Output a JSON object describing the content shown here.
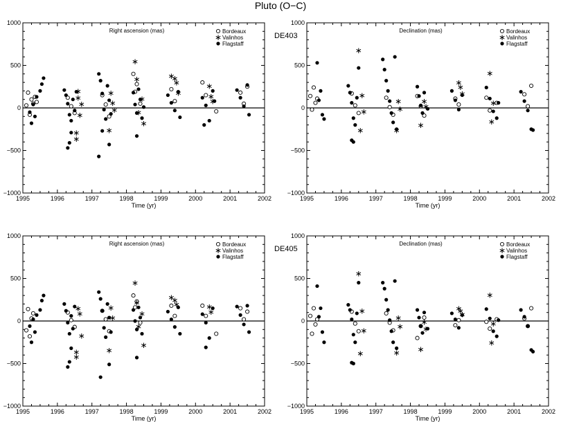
{
  "figure": {
    "title": "Pluto (O−C)"
  },
  "legend": [
    "Bordeaux",
    "Valinhos",
    "Flagstaff"
  ],
  "chart_data": [
    {
      "type": "scatter",
      "title": "Right ascension (mas)",
      "ephemeris": "",
      "xlabel": "Time (yr)",
      "ylabel": "",
      "xlim": [
        1995,
        2002
      ],
      "ylim": [
        -1000,
        1000
      ],
      "xticks": [
        "1995",
        "1996",
        "1997",
        "1998",
        "1999",
        "2000",
        "2001",
        "2002"
      ],
      "yticks": [
        "1000",
        "500",
        "0",
        "−500",
        "−1000"
      ],
      "series": [
        {
          "name": "Bordeaux",
          "marker": "open-circle",
          "x": [
            1995.1,
            1995.15,
            1995.2,
            1995.25,
            1995.3,
            1995.35,
            1995.4,
            1996.3,
            1996.4,
            1996.5,
            1997.3,
            1997.4,
            1997.5,
            1998.2,
            1998.25,
            1998.3,
            1998.4,
            1999.3,
            1999.4,
            2000.2,
            2000.3,
            2000.6,
            2001.3,
            2001.4,
            2001.5
          ],
          "y": [
            30,
            180,
            -80,
            100,
            50,
            130,
            70,
            120,
            20,
            -60,
            150,
            40,
            -100,
            400,
            190,
            280,
            50,
            220,
            80,
            300,
            150,
            -40,
            180,
            50,
            250
          ]
        },
        {
          "name": "Valinhos",
          "marker": "asterisk",
          "x": [
            1996.55,
            1996.55,
            1996.6,
            1996.6,
            1996.65,
            1996.7,
            1997.5,
            1997.55,
            1997.6,
            1997.65,
            1998.25,
            1998.3,
            1998.35,
            1998.45,
            1998.5,
            1999.3,
            1999.4,
            1999.45,
            1999.5,
            2000.4,
            2000.45,
            2000.5
          ],
          "y": [
            -290,
            -360,
            200,
            120,
            -80,
            50,
            -260,
            180,
            60,
            -20,
            550,
            340,
            -50,
            110,
            -180,
            380,
            350,
            300,
            180,
            260,
            140,
            80
          ]
        },
        {
          "name": "Flagstaff",
          "marker": "filled-circle",
          "x": [
            1995.2,
            1995.25,
            1995.3,
            1995.35,
            1995.4,
            1995.5,
            1995.55,
            1995.6,
            1996.2,
            1996.25,
            1996.3,
            1996.35,
            1996.4,
            1996.45,
            1996.5,
            1996.55,
            1996.3,
            1996.35,
            1996.4,
            1997.2,
            1997.25,
            1997.3,
            1997.35,
            1997.4,
            1997.45,
            1997.5,
            1997.55,
            1997.2,
            1997.3,
            1997.5,
            1998.2,
            1998.25,
            1998.3,
            1998.35,
            1998.4,
            1998.45,
            1998.5,
            1998.3,
            1999.2,
            1999.3,
            1999.4,
            1999.5,
            1999.55,
            2000.2,
            2000.3,
            2000.4,
            2000.5,
            2000.55,
            2000.25,
            2001.2,
            2001.3,
            2001.4,
            2001.5,
            2001.55
          ],
          "y": [
            -50,
            -180,
            40,
            -100,
            130,
            200,
            280,
            350,
            210,
            150,
            50,
            -80,
            -150,
            100,
            -30,
            190,
            -470,
            -410,
            -290,
            400,
            320,
            170,
            -20,
            -130,
            260,
            90,
            -70,
            -570,
            -270,
            -430,
            180,
            40,
            -60,
            220,
            100,
            -120,
            10,
            -330,
            150,
            60,
            -30,
            190,
            -110,
            120,
            30,
            -150,
            200,
            80,
            -200,
            210,
            120,
            20,
            270,
            -80
          ]
        }
      ]
    },
    {
      "type": "scatter",
      "title": "Declination (mas)",
      "ephemeris": "DE403",
      "xlabel": "Time (yr)",
      "ylabel": "",
      "xlim": [
        1995,
        2002
      ],
      "ylim": [
        -1000,
        1000
      ],
      "xticks": [
        "1995",
        "1996",
        "1997",
        "1998",
        "1999",
        "2000",
        "2001",
        "2002"
      ],
      "yticks": [
        "1000",
        "500",
        "0",
        "−500",
        "−1000"
      ],
      "series": [
        {
          "name": "Bordeaux",
          "marker": "open-circle",
          "x": [
            1995.1,
            1995.15,
            1995.2,
            1995.25,
            1995.3,
            1996.3,
            1996.4,
            1996.5,
            1997.3,
            1997.4,
            1997.5,
            1998.2,
            1998.3,
            1998.4,
            1999.3,
            1999.4,
            2000.2,
            2000.3,
            2000.5,
            2001.3,
            2001.4,
            2001.5
          ],
          "y": [
            140,
            -20,
            240,
            60,
            110,
            170,
            30,
            -60,
            120,
            10,
            -80,
            140,
            20,
            -90,
            110,
            40,
            120,
            -30,
            60,
            160,
            20,
            260
          ]
        },
        {
          "name": "Valinhos",
          "marker": "asterisk",
          "x": [
            1996.5,
            1996.55,
            1996.6,
            1996.65,
            1997.6,
            1997.65,
            1997.7,
            1998.3,
            1998.4,
            1998.45,
            1999.4,
            1999.45,
            1999.5,
            2000.3,
            2000.35,
            2000.4
          ],
          "y": [
            680,
            -260,
            150,
            -40,
            -260,
            80,
            -10,
            -200,
            80,
            20,
            300,
            250,
            170,
            410,
            -160,
            60
          ]
        },
        {
          "name": "Flagstaff",
          "marker": "filled-circle",
          "x": [
            1995.3,
            1995.4,
            1995.5,
            1995.35,
            1995.45,
            1996.2,
            1996.25,
            1996.3,
            1996.35,
            1996.4,
            1996.45,
            1996.5,
            1996.3,
            1996.35,
            1997.2,
            1997.25,
            1997.3,
            1997.35,
            1997.4,
            1997.45,
            1997.5,
            1997.55,
            1997.6,
            1998.2,
            1998.25,
            1998.3,
            1998.35,
            1998.4,
            1998.5,
            1999.2,
            1999.3,
            1999.4,
            1999.5,
            2000.2,
            2000.3,
            2000.4,
            2000.5,
            2000.55,
            2001.2,
            2001.3,
            2001.4,
            2001.5,
            2001.55
          ],
          "y": [
            530,
            200,
            -130,
            90,
            -80,
            260,
            180,
            60,
            -120,
            -200,
            120,
            470,
            -380,
            -400,
            570,
            450,
            320,
            200,
            80,
            -60,
            -170,
            600,
            -250,
            250,
            140,
            30,
            -60,
            180,
            -10,
            200,
            90,
            -20,
            150,
            240,
            110,
            -40,
            -120,
            60,
            190,
            80,
            -30,
            -250,
            -260
          ]
        }
      ]
    },
    {
      "type": "scatter",
      "title": "Right ascension (mas)",
      "ephemeris": "",
      "xlabel": "Time (yr)",
      "ylabel": "",
      "xlim": [
        1995,
        2002
      ],
      "ylim": [
        -1000,
        1000
      ],
      "xticks": [
        "1995",
        "1996",
        "1997",
        "1998",
        "1999",
        "2000",
        "2001",
        "2002"
      ],
      "yticks": [
        "1000",
        "500",
        "0",
        "−500",
        "−1000"
      ],
      "series": [
        {
          "name": "Bordeaux",
          "marker": "open-circle",
          "x": [
            1995.1,
            1995.15,
            1995.2,
            1995.25,
            1995.3,
            1996.3,
            1996.4,
            1996.5,
            1997.3,
            1997.4,
            1997.5,
            1998.2,
            1998.25,
            1998.3,
            1998.4,
            1999.3,
            1999.4,
            2000.2,
            2000.3,
            2000.6,
            2001.3,
            2001.4,
            2001.5
          ],
          "y": [
            -110,
            140,
            -180,
            30,
            90,
            100,
            10,
            -70,
            120,
            20,
            -120,
            300,
            160,
            230,
            -20,
            180,
            60,
            180,
            60,
            -150,
            150,
            20,
            110
          ]
        },
        {
          "name": "Valinhos",
          "marker": "asterisk",
          "x": [
            1996.55,
            1996.55,
            1996.6,
            1996.65,
            1996.7,
            1997.5,
            1997.55,
            1997.6,
            1998.25,
            1998.3,
            1998.35,
            1998.45,
            1998.5,
            1999.3,
            1999.4,
            1999.45,
            2000.4,
            2000.45
          ],
          "y": [
            -360,
            -420,
            150,
            90,
            -170,
            -340,
            160,
            40,
            450,
            220,
            -60,
            90,
            -280,
            280,
            250,
            200,
            170,
            110
          ]
        },
        {
          "name": "Flagstaff",
          "marker": "filled-circle",
          "x": [
            1995.2,
            1995.25,
            1995.3,
            1995.35,
            1995.4,
            1995.5,
            1995.55,
            1995.6,
            1996.2,
            1996.25,
            1996.3,
            1996.35,
            1996.4,
            1996.45,
            1996.5,
            1996.3,
            1996.35,
            1996.4,
            1997.2,
            1997.25,
            1997.3,
            1997.35,
            1997.4,
            1997.45,
            1997.5,
            1997.55,
            1997.25,
            1997.5,
            1998.2,
            1998.25,
            1998.3,
            1998.35,
            1998.4,
            1998.45,
            1998.3,
            1999.2,
            1999.3,
            1999.4,
            1999.5,
            1999.55,
            2000.2,
            2000.3,
            2000.4,
            2000.5,
            2000.3,
            2001.2,
            2001.3,
            2001.4,
            2001.5,
            2001.55
          ],
          "y": [
            -60,
            -250,
            20,
            -130,
            70,
            130,
            240,
            300,
            200,
            120,
            -20,
            -150,
            60,
            -90,
            170,
            -540,
            -480,
            -320,
            340,
            260,
            120,
            -80,
            -190,
            200,
            40,
            -130,
            -660,
            -510,
            130,
            0,
            -100,
            160,
            40,
            -150,
            -430,
            110,
            20,
            -70,
            160,
            -150,
            80,
            -20,
            -200,
            150,
            -310,
            170,
            70,
            -40,
            180,
            -130
          ]
        }
      ]
    },
    {
      "type": "scatter",
      "title": "Declination (mas)",
      "ephemeris": "DE405",
      "xlabel": "Time (yr)",
      "ylabel": "",
      "xlim": [
        1995,
        2002
      ],
      "ylim": [
        -1000,
        1000
      ],
      "xticks": [
        "1995",
        "1996",
        "1997",
        "1998",
        "1999",
        "2000",
        "2001",
        "2002"
      ],
      "yticks": [
        "1000",
        "500",
        "0",
        "−500",
        "−1000"
      ],
      "series": [
        {
          "name": "Bordeaux",
          "marker": "open-circle",
          "x": [
            1995.1,
            1995.15,
            1995.2,
            1995.25,
            1995.3,
            1996.3,
            1996.4,
            1996.5,
            1997.3,
            1997.4,
            1997.5,
            1998.2,
            1998.3,
            1998.4,
            1999.3,
            1999.4,
            2000.2,
            2000.3,
            2000.5,
            2001.3,
            2001.4,
            2001.5
          ],
          "y": [
            60,
            -150,
            150,
            -40,
            20,
            110,
            -30,
            -120,
            90,
            -20,
            -110,
            -200,
            -60,
            40,
            -50,
            10,
            -10,
            -90,
            20,
            30,
            -60,
            150
          ]
        },
        {
          "name": "Valinhos",
          "marker": "asterisk",
          "x": [
            1996.5,
            1996.55,
            1996.6,
            1996.65,
            1997.6,
            1997.65,
            1997.7,
            1998.3,
            1998.4,
            1998.45,
            1999.4,
            1999.45,
            1999.5,
            2000.3,
            2000.35,
            2000.4
          ],
          "y": [
            560,
            -380,
            120,
            -110,
            -370,
            40,
            -60,
            -330,
            -10,
            -90,
            150,
            120,
            80,
            310,
            -250,
            -30
          ]
        },
        {
          "name": "Flagstaff",
          "marker": "filled-circle",
          "x": [
            1995.3,
            1995.4,
            1995.5,
            1995.35,
            1995.45,
            1996.2,
            1996.25,
            1996.3,
            1996.35,
            1996.4,
            1996.45,
            1996.5,
            1996.3,
            1996.35,
            1997.2,
            1997.25,
            1997.3,
            1997.35,
            1997.4,
            1997.45,
            1997.5,
            1997.55,
            1997.6,
            1998.2,
            1998.25,
            1998.3,
            1998.35,
            1998.4,
            1998.5,
            1999.2,
            1999.3,
            1999.4,
            1999.5,
            2000.2,
            2000.3,
            2000.4,
            2000.5,
            2000.55,
            2001.2,
            2001.3,
            2001.4,
            2001.5,
            2001.55
          ],
          "y": [
            410,
            150,
            -250,
            50,
            -130,
            190,
            130,
            20,
            -160,
            -250,
            90,
            450,
            -490,
            -500,
            450,
            380,
            250,
            130,
            10,
            -120,
            -250,
            470,
            -320,
            130,
            40,
            -60,
            -140,
            100,
            -90,
            90,
            20,
            -80,
            70,
            140,
            30,
            -120,
            -180,
            10,
            130,
            50,
            -60,
            -340,
            -360
          ]
        }
      ]
    }
  ]
}
